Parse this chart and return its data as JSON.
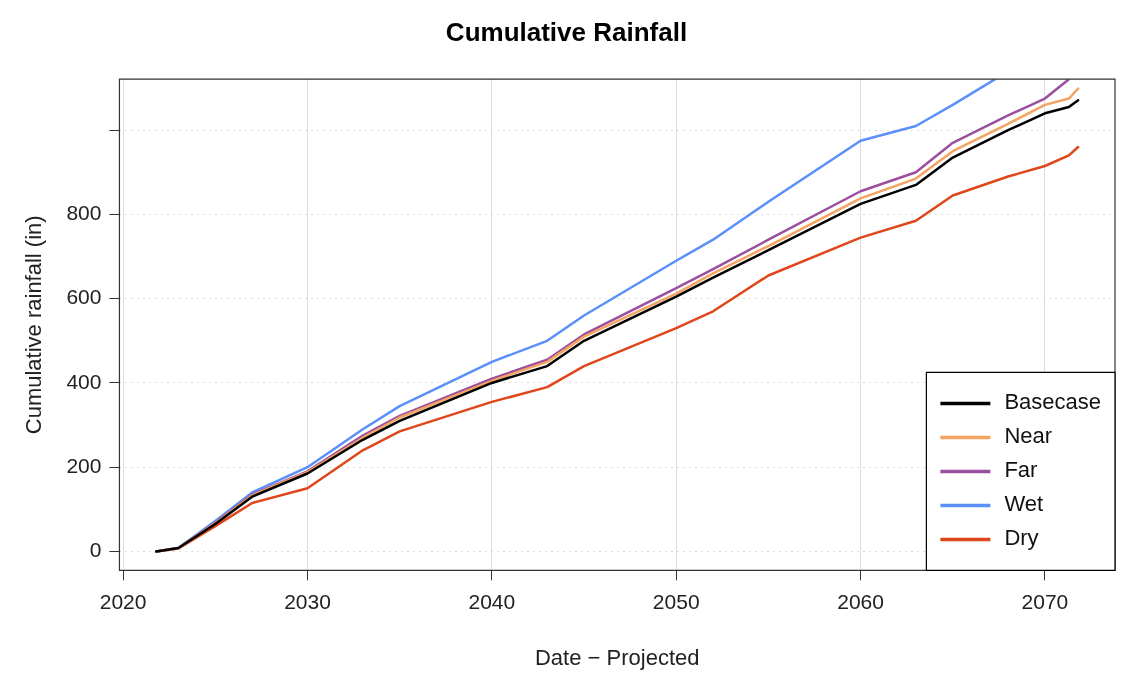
{
  "chart_data": {
    "type": "line",
    "title": "Cumulative Rainfall",
    "xlabel": "Date − Projected",
    "ylabel": "Cumulative rainfall (in)",
    "x": [
      2021.8,
      2023,
      2025,
      2027,
      2030,
      2033,
      2035,
      2040,
      2043,
      2045,
      2050,
      2052,
      2055,
      2060,
      2063,
      2065,
      2068,
      2070,
      2071.3,
      2071.8
    ],
    "series": [
      {
        "name": "Basecase",
        "color": "#000000",
        "values": [
          0,
          8,
          65,
          130,
          185,
          265,
          310,
          400,
          440,
          500,
          605,
          650,
          715,
          825,
          870,
          935,
          1000,
          1040,
          1055,
          1071
        ]
      },
      {
        "name": "Near",
        "color": "#f4a460",
        "values": [
          0,
          8,
          67,
          133,
          188,
          270,
          318,
          405,
          450,
          510,
          612,
          660,
          725,
          838,
          885,
          950,
          1015,
          1060,
          1075,
          1099
        ]
      },
      {
        "name": "Far",
        "color": "#9b4f9f",
        "values": [
          0,
          8,
          68,
          135,
          190,
          275,
          322,
          410,
          455,
          515,
          625,
          670,
          740,
          855,
          900,
          970,
          1035,
          1075,
          1121,
          null
        ]
      },
      {
        "name": "Wet",
        "color": "#5b8ff9",
        "x": [
          2021.8,
          2023,
          2025,
          2027,
          2030,
          2033,
          2035,
          2040,
          2043,
          2045,
          2050,
          2052,
          2055,
          2060,
          2063,
          2065,
          2067.3
        ],
        "values": [
          0,
          9,
          72,
          140,
          200,
          290,
          345,
          450,
          500,
          560,
          690,
          740,
          830,
          975,
          1010,
          1060,
          1121
        ]
      },
      {
        "name": "Dry",
        "color": "#e0461b",
        "values": [
          0,
          7,
          60,
          115,
          150,
          240,
          285,
          355,
          390,
          440,
          530,
          570,
          655,
          745,
          785,
          845,
          890,
          915,
          940,
          960
        ]
      }
    ],
    "xlim": [
      2019.8,
      2073.8
    ],
    "xticks": [
      2020,
      2030,
      2040,
      2050,
      2060,
      2070
    ],
    "ylim": [
      -45,
      1121
    ],
    "yticks": [
      0,
      200,
      400,
      600,
      800,
      {
        "value": 1000,
        "label": null
      }
    ],
    "grid": true,
    "legend": "bottom right",
    "line_style": "solid",
    "marker": "none"
  }
}
